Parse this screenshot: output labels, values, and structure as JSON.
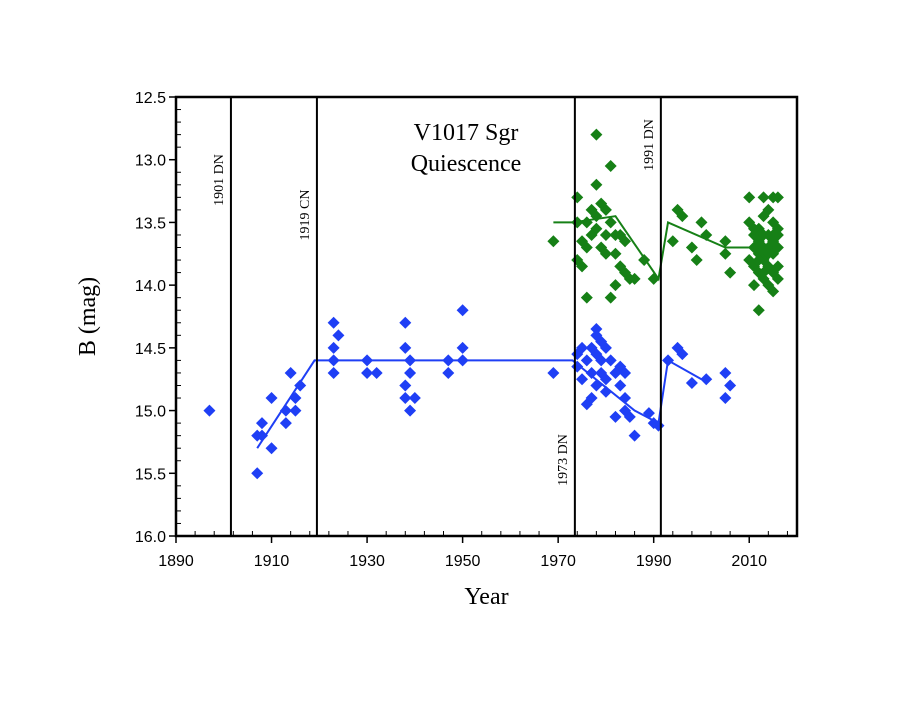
{
  "chart_data": {
    "type": "scatter",
    "title": "V1017 Sgr",
    "subtitle": "Quiescence",
    "xlabel": "Year",
    "ylabel": "B (mag)",
    "xlim": [
      1890,
      2020
    ],
    "ylim": [
      12.5,
      16.0
    ],
    "y_inverted": true,
    "x_ticks": [
      "1890",
      "1910",
      "1930",
      "1950",
      "1970",
      "1990",
      "2010"
    ],
    "y_ticks": [
      "12.5",
      "13.0",
      "13.5",
      "14.0",
      "14.5",
      "15.0",
      "15.5",
      "16.0"
    ],
    "grid": false,
    "colors": {
      "blue": "#1f3ff5",
      "green": "#168016",
      "axis": "#000000"
    },
    "events": [
      {
        "year": 1901.5,
        "label": "1901 DN"
      },
      {
        "year": 1919.5,
        "label": "1919 CN"
      },
      {
        "year": 1973.5,
        "label": "1973 DN"
      },
      {
        "year": 1991.5,
        "label": "1991 DN"
      }
    ],
    "series": [
      {
        "name": "blue-points",
        "color": "#1f3ff5",
        "marker": "diamond",
        "points": [
          [
            1897,
            15.0
          ],
          [
            1907,
            15.5
          ],
          [
            1907,
            15.2
          ],
          [
            1908,
            15.2
          ],
          [
            1908,
            15.1
          ],
          [
            1910,
            14.9
          ],
          [
            1910,
            15.3
          ],
          [
            1913,
            15.0
          ],
          [
            1913,
            15.1
          ],
          [
            1914,
            14.7
          ],
          [
            1915,
            14.9
          ],
          [
            1915,
            15.0
          ],
          [
            1916,
            14.8
          ],
          [
            1923,
            14.3
          ],
          [
            1923,
            14.5
          ],
          [
            1923,
            14.6
          ],
          [
            1923,
            14.7
          ],
          [
            1924,
            14.4
          ],
          [
            1930,
            14.6
          ],
          [
            1930,
            14.7
          ],
          [
            1932,
            14.7
          ],
          [
            1938,
            14.3
          ],
          [
            1938,
            14.5
          ],
          [
            1939,
            14.6
          ],
          [
            1938,
            14.8
          ],
          [
            1938,
            14.9
          ],
          [
            1939,
            14.7
          ],
          [
            1939,
            15.0
          ],
          [
            1940,
            14.9
          ],
          [
            1947,
            14.6
          ],
          [
            1947,
            14.7
          ],
          [
            1950,
            14.2
          ],
          [
            1950,
            14.5
          ],
          [
            1950,
            14.6
          ],
          [
            1969,
            14.7
          ],
          [
            1974,
            14.55
          ],
          [
            1974,
            14.65
          ],
          [
            1975,
            14.5
          ],
          [
            1975,
            14.75
          ],
          [
            1976,
            14.6
          ],
          [
            1976,
            14.95
          ],
          [
            1977,
            14.5
          ],
          [
            1977,
            14.7
          ],
          [
            1977,
            14.9
          ],
          [
            1978,
            14.35
          ],
          [
            1978,
            14.4
          ],
          [
            1978,
            14.55
          ],
          [
            1978,
            14.8
          ],
          [
            1979,
            14.45
          ],
          [
            1979,
            14.6
          ],
          [
            1979,
            14.7
          ],
          [
            1980,
            14.5
          ],
          [
            1980,
            14.75
          ],
          [
            1980,
            14.85
          ],
          [
            1981,
            14.6
          ],
          [
            1982,
            14.7
          ],
          [
            1982,
            15.05
          ],
          [
            1983,
            14.65
          ],
          [
            1983,
            14.8
          ],
          [
            1984,
            14.7
          ],
          [
            1984,
            15.0
          ],
          [
            1984,
            14.9
          ],
          [
            1985,
            15.05
          ],
          [
            1986,
            15.2
          ],
          [
            1989,
            15.02
          ],
          [
            1990,
            15.1
          ],
          [
            1991,
            15.12
          ],
          [
            1993,
            14.6
          ],
          [
            1995,
            14.5
          ],
          [
            1996,
            14.55
          ],
          [
            1998,
            14.78
          ],
          [
            2001,
            14.75
          ],
          [
            2005,
            14.7
          ],
          [
            2005,
            14.9
          ],
          [
            2006,
            14.8
          ]
        ],
        "trend": [
          [
            1907,
            15.3
          ],
          [
            1919,
            14.6
          ],
          [
            1973,
            14.6
          ],
          [
            1986,
            15.0
          ],
          [
            1991,
            15.1
          ],
          [
            1993,
            14.6
          ],
          [
            2000,
            14.75
          ]
        ]
      },
      {
        "name": "green-points",
        "color": "#168016",
        "marker": "diamond",
        "points": [
          [
            1969,
            13.65
          ],
          [
            1974,
            13.3
          ],
          [
            1974,
            13.5
          ],
          [
            1974,
            13.8
          ],
          [
            1975,
            13.65
          ],
          [
            1975,
            13.85
          ],
          [
            1976,
            13.5
          ],
          [
            1976,
            13.7
          ],
          [
            1976,
            14.1
          ],
          [
            1977,
            13.4
          ],
          [
            1977,
            13.6
          ],
          [
            1978,
            12.8
          ],
          [
            1978,
            13.2
          ],
          [
            1978,
            13.45
          ],
          [
            1978,
            13.55
          ],
          [
            1979,
            13.35
          ],
          [
            1979,
            13.7
          ],
          [
            1980,
            13.4
          ],
          [
            1980,
            13.6
          ],
          [
            1980,
            13.75
          ],
          [
            1981,
            13.05
          ],
          [
            1981,
            13.5
          ],
          [
            1981,
            14.1
          ],
          [
            1982,
            13.6
          ],
          [
            1982,
            13.75
          ],
          [
            1982,
            14.0
          ],
          [
            1983,
            13.6
          ],
          [
            1983,
            13.85
          ],
          [
            1984,
            13.65
          ],
          [
            1984,
            13.9
          ],
          [
            1985,
            13.95
          ],
          [
            1986,
            13.95
          ],
          [
            1988,
            13.8
          ],
          [
            1990,
            13.95
          ],
          [
            1994,
            13.65
          ],
          [
            1995,
            13.4
          ],
          [
            1996,
            13.45
          ],
          [
            1998,
            13.7
          ],
          [
            1999,
            13.8
          ],
          [
            2000,
            13.5
          ],
          [
            2001,
            13.6
          ],
          [
            2005,
            13.65
          ],
          [
            2005,
            13.75
          ],
          [
            2006,
            13.9
          ],
          [
            2010,
            13.3
          ],
          [
            2010,
            13.5
          ],
          [
            2011,
            13.6
          ],
          [
            2011,
            13.7
          ],
          [
            2011,
            13.85
          ],
          [
            2011,
            14.0
          ],
          [
            2012,
            13.55
          ],
          [
            2012,
            13.65
          ],
          [
            2012,
            13.75
          ],
          [
            2012,
            13.9
          ],
          [
            2012,
            14.2
          ],
          [
            2013,
            13.3
          ],
          [
            2013,
            13.45
          ],
          [
            2013,
            13.6
          ],
          [
            2013,
            13.7
          ],
          [
            2013,
            13.8
          ],
          [
            2013,
            13.95
          ],
          [
            2014,
            13.4
          ],
          [
            2014,
            13.6
          ],
          [
            2014,
            13.7
          ],
          [
            2014,
            13.85
          ],
          [
            2014,
            14.0
          ],
          [
            2015,
            13.3
          ],
          [
            2015,
            13.5
          ],
          [
            2015,
            13.65
          ],
          [
            2015,
            13.75
          ],
          [
            2015,
            13.9
          ],
          [
            2015,
            14.05
          ],
          [
            2016,
            13.3
          ],
          [
            2016,
            13.55
          ],
          [
            2016,
            13.7
          ],
          [
            2016,
            13.85
          ],
          [
            2016,
            13.95
          ],
          [
            2010,
            13.8
          ],
          [
            2011,
            13.55
          ],
          [
            2012,
            13.8
          ],
          [
            2013,
            13.9
          ],
          [
            2014,
            13.75
          ],
          [
            2015,
            13.6
          ],
          [
            2016,
            13.6
          ]
        ],
        "trend": [
          [
            1969,
            13.5
          ],
          [
            1973,
            13.5
          ],
          [
            1982,
            13.45
          ],
          [
            1991,
            13.95
          ],
          [
            1993,
            13.5
          ],
          [
            2005,
            13.7
          ],
          [
            2015,
            13.7
          ]
        ]
      }
    ]
  }
}
